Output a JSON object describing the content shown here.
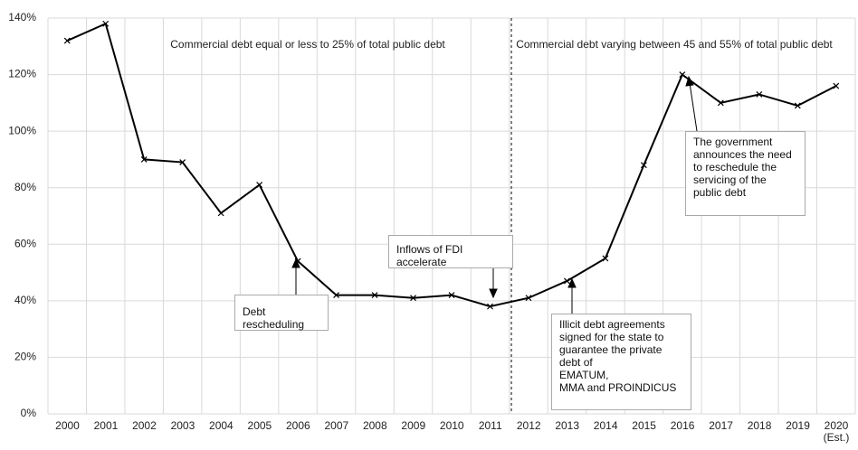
{
  "chart_data": {
    "type": "line",
    "categories": [
      "2000",
      "2001",
      "2002",
      "2003",
      "2004",
      "2005",
      "2006",
      "2007",
      "2008",
      "2009",
      "2010",
      "2011",
      "2012",
      "2013",
      "2014",
      "2015",
      "2016",
      "2017",
      "2018",
      "2019",
      "2020 (Est.)"
    ],
    "values": [
      132,
      138,
      90,
      89,
      71,
      81,
      54,
      42,
      42,
      41,
      42,
      38,
      41,
      47,
      55,
      88,
      120,
      110,
      113,
      109,
      116
    ],
    "color": "#000000",
    "ylim": [
      0,
      140
    ],
    "yticks": [
      {
        "value": 0,
        "label": "0%"
      },
      {
        "value": 20,
        "label": "20%"
      },
      {
        "value": 40,
        "label": "40%"
      },
      {
        "value": 60,
        "label": "60%"
      },
      {
        "value": 80,
        "label": "80%"
      },
      {
        "value": 100,
        "label": "100%"
      },
      {
        "value": 120,
        "label": "120%"
      },
      {
        "value": 140,
        "label": "140%"
      }
    ],
    "grid": true,
    "region_labels": [
      "Commercial debt equal or less to 25% of total public debt",
      "Commercial debt varying between 45 and 55% of total public debt"
    ],
    "annotations": [
      {
        "lines": [
          "Debt rescheduling"
        ]
      },
      {
        "lines": [
          "Inflows of FDI accelerate"
        ]
      },
      {
        "lines": [
          "Illicit debt agreements signed for the state to guarantee the private debt of",
          "EMATUM,",
          "MMA and PROINDICUS"
        ]
      },
      {
        "lines": [
          "The government announces the need to reschedule the servicing of the public debt"
        ]
      }
    ]
  }
}
